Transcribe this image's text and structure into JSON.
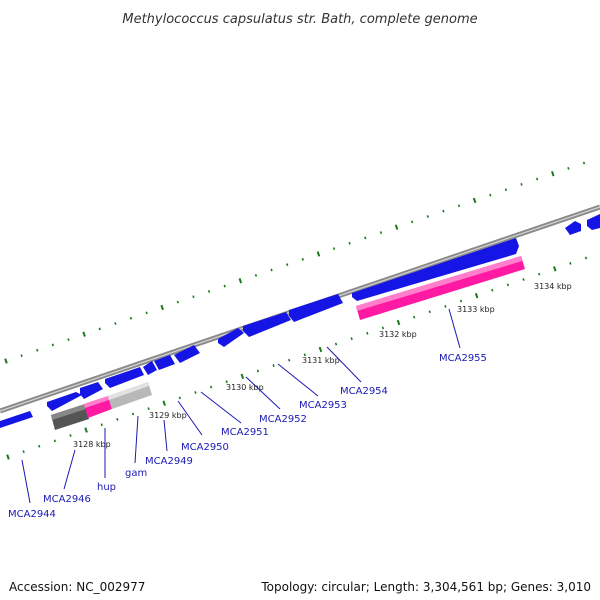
{
  "title": "Methylococcus capsulatus str. Bath, complete genome",
  "accession": "Accession: NC_002977",
  "topology": "Topology: circular; Length: 3,304,561 bp; Genes: 3,010",
  "colors": {
    "backbone": "#8a8a8a",
    "forward_gene": "#1515e6",
    "reverse_gene": "#ff1aa3",
    "rna_dark": "#555555",
    "rna_light": "#b8b8b8",
    "tick": "#1a7a1a",
    "label": "#1a1ab4"
  },
  "ticks": [
    {
      "label": "3128 kbp"
    },
    {
      "label": "3129 kbp"
    },
    {
      "label": "3130 kbp"
    },
    {
      "label": "3131 kbp"
    },
    {
      "label": "3132 kbp"
    },
    {
      "label": "3133 kbp"
    },
    {
      "label": "3134 kbp"
    }
  ],
  "genes": [
    {
      "label": "MCA2944"
    },
    {
      "label": "MCA2946"
    },
    {
      "label": "hup"
    },
    {
      "label": "gam"
    },
    {
      "label": "MCA2949"
    },
    {
      "label": "MCA2950"
    },
    {
      "label": "MCA2951"
    },
    {
      "label": "MCA2952"
    },
    {
      "label": "MCA2953"
    },
    {
      "label": "MCA2954"
    },
    {
      "label": "MCA2955"
    }
  ]
}
